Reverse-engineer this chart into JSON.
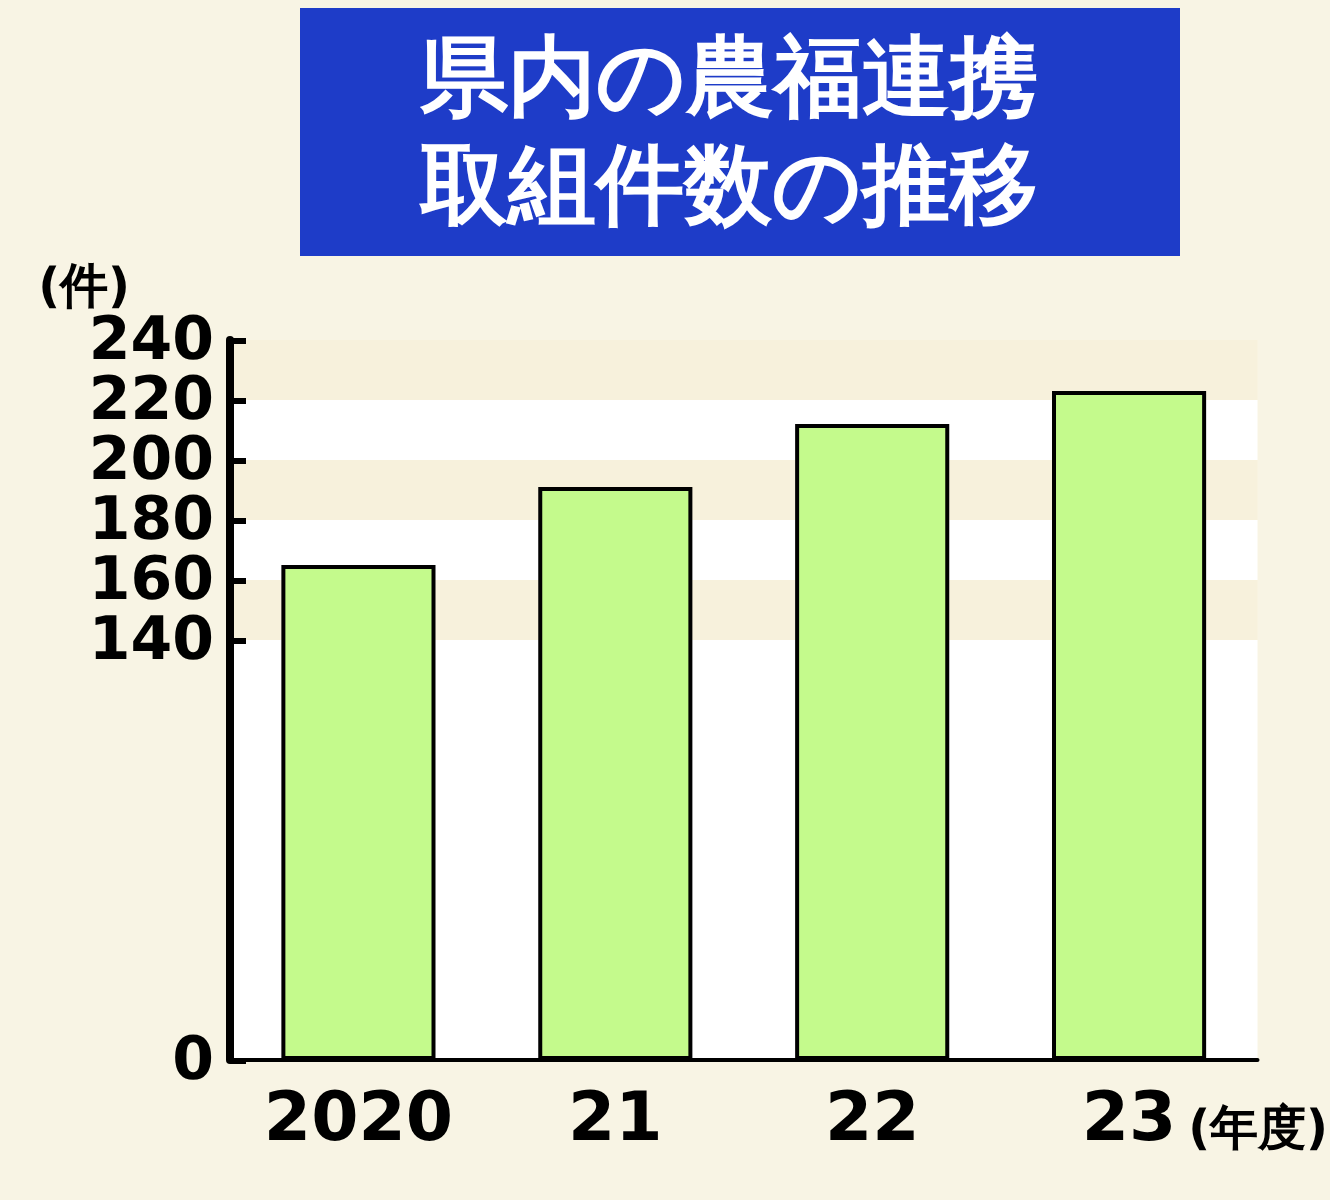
{
  "chart_data": {
    "type": "bar",
    "title": "県内の農福連携取組件数の推移",
    "categories": [
      "2020",
      "21",
      "22",
      "23"
    ],
    "values": [
      165,
      191,
      212,
      223
    ],
    "color": "#c4fa8c",
    "ylabel": "(件)",
    "xlabel": "(年度)",
    "ylim": [
      0,
      240
    ],
    "yticks": [
      0,
      140,
      160,
      180,
      200,
      220,
      240
    ],
    "tick_labels": "xy"
  }
}
